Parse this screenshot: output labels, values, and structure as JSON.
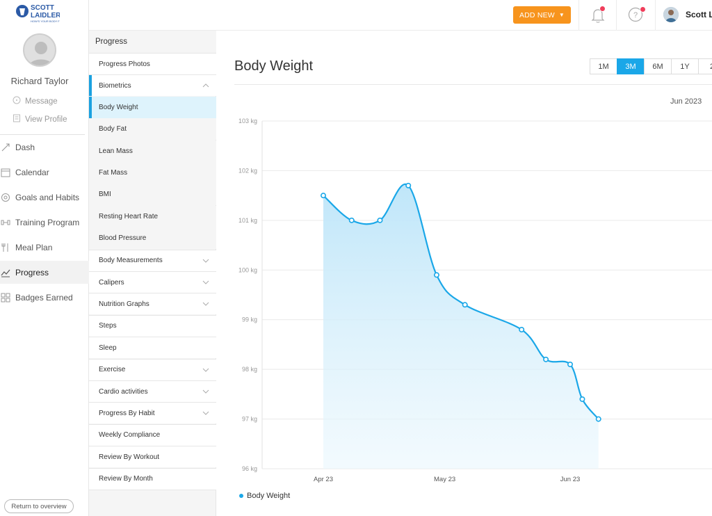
{
  "sidebar": {
    "logo_text": "SCOTT LAIDLER",
    "logo_sub": "HOW'S YOUR BODY FUEL",
    "user_name": "Richard Taylor",
    "links": [
      {
        "label": "Message",
        "icon": "message-icon"
      },
      {
        "label": "View Profile",
        "icon": "profile-icon"
      }
    ],
    "nav": [
      {
        "label": "Dash",
        "icon": "dash-icon",
        "active": false
      },
      {
        "label": "Calendar",
        "icon": "calendar-icon",
        "active": false
      },
      {
        "label": "Goals and Habits",
        "icon": "goals-icon",
        "active": false
      },
      {
        "label": "Training Program",
        "icon": "training-icon",
        "active": false
      },
      {
        "label": "Meal Plan",
        "icon": "meal-plan-icon",
        "active": false
      },
      {
        "label": "Progress",
        "icon": "progress-chart-icon",
        "active": true
      },
      {
        "label": "Badges Earned",
        "icon": "badges-icon",
        "active": false
      }
    ],
    "return_label": "Return to overview"
  },
  "topbar": {
    "add_new_label": "ADD NEW",
    "user_short": "Scott L.",
    "accent": "#f7941d",
    "badge_color": "#f03e5b"
  },
  "subnav": {
    "heading": "Progress",
    "items": [
      {
        "label": "Progress Photos",
        "kind": "item"
      },
      {
        "label": "Biometrics",
        "kind": "parent-open",
        "chevron": "up"
      },
      {
        "label": "Body Weight",
        "kind": "child",
        "active": true
      },
      {
        "label": "Body Fat",
        "kind": "child"
      },
      {
        "label": "Lean Mass",
        "kind": "child"
      },
      {
        "label": "Fat Mass",
        "kind": "child"
      },
      {
        "label": "BMI",
        "kind": "child"
      },
      {
        "label": "Resting Heart Rate",
        "kind": "child"
      },
      {
        "label": "Blood Pressure",
        "kind": "child"
      },
      {
        "label": "Body Measurements",
        "kind": "item",
        "chevron": "down"
      },
      {
        "label": "Calipers",
        "kind": "item",
        "chevron": "down"
      },
      {
        "label": "Nutrition Graphs",
        "kind": "item",
        "chevron": "down"
      },
      {
        "label": "Steps",
        "kind": "item"
      },
      {
        "label": "Sleep",
        "kind": "item"
      },
      {
        "label": "Exercise",
        "kind": "item",
        "chevron": "down"
      },
      {
        "label": "Cardio activities",
        "kind": "item",
        "chevron": "down"
      },
      {
        "label": "Progress By Habit",
        "kind": "item",
        "chevron": "down"
      },
      {
        "label": "Weekly Compliance",
        "kind": "item"
      },
      {
        "label": "Review By Workout",
        "kind": "item"
      },
      {
        "label": "Review By Month",
        "kind": "item"
      }
    ]
  },
  "main": {
    "title": "Body Weight",
    "ranges": [
      {
        "label": "1M",
        "active": false
      },
      {
        "label": "3M",
        "active": true
      },
      {
        "label": "6M",
        "active": false
      },
      {
        "label": "1Y",
        "active": false
      },
      {
        "label": "2",
        "active": false
      }
    ],
    "month_label": "Jun 2023"
  },
  "chart_data": {
    "type": "area",
    "title": "",
    "xlabel": "",
    "ylabel": "",
    "ylim": [
      96,
      103
    ],
    "y_ticks": [
      "96 kg",
      "97 kg",
      "98 kg",
      "99 kg",
      "100 kg",
      "101 kg",
      "102 kg",
      "103 kg"
    ],
    "x_ticks": [
      "Apr 23",
      "May 23",
      "Jun 23"
    ],
    "x_tick_dates": [
      "2023-04-23",
      "2023-05-23",
      "2023-06-23"
    ],
    "grid": true,
    "legend": "bottom-left",
    "color": "#1aa7e8",
    "series": [
      {
        "name": "Body Weight",
        "x": [
          "2023-04-23",
          "2023-04-30",
          "2023-05-07",
          "2023-05-14",
          "2023-05-21",
          "2023-05-28",
          "2023-06-11",
          "2023-06-17",
          "2023-06-23",
          "2023-06-26",
          "2023-06-30"
        ],
        "values": [
          101.5,
          101.0,
          101.0,
          101.7,
          99.9,
          99.3,
          98.8,
          98.2,
          98.1,
          97.4,
          97.0
        ]
      }
    ]
  }
}
